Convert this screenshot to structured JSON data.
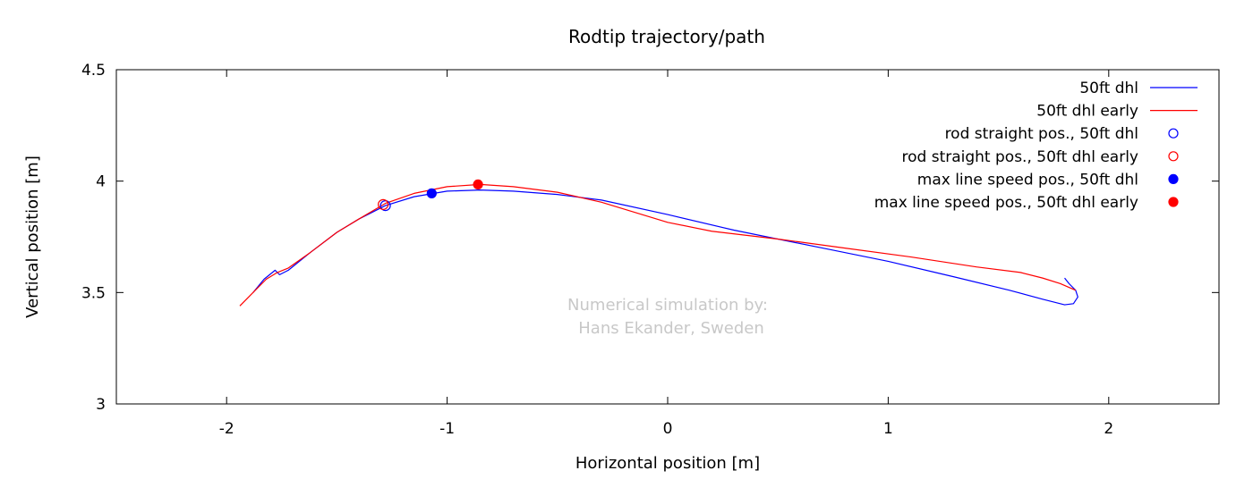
{
  "chart_data": {
    "type": "line",
    "title": "Rodtip trajectory/path",
    "xlabel": "Horizontal position [m]",
    "ylabel": "Vertical position [m]",
    "xlim": [
      -2.5,
      2.5
    ],
    "ylim": [
      3,
      4.5
    ],
    "x_ticks": [
      -2,
      -1,
      0,
      1,
      2
    ],
    "y_ticks": [
      3,
      3.5,
      4,
      4.5
    ],
    "x_tick_labels": [
      "-2",
      "-1",
      "0",
      "1",
      "2"
    ],
    "y_tick_labels": [
      "3",
      "3.5",
      "4",
      "4.5"
    ],
    "grid": false,
    "legend_position": "top-right",
    "annotation": [
      "Numerical simulation by:",
      "Hans Ekander, Sweden"
    ],
    "series": [
      {
        "name": "50ft dhl",
        "kind": "line",
        "color": "#0000ff",
        "x": [
          -1.88,
          -1.83,
          -1.78,
          -1.76,
          -1.72,
          -1.62,
          -1.5,
          -1.4,
          -1.28,
          -1.15,
          -1.0,
          -0.85,
          -0.7,
          -0.5,
          -0.3,
          0.0,
          0.3,
          0.7,
          1.0,
          1.3,
          1.55,
          1.7,
          1.8,
          1.84,
          1.86,
          1.85,
          1.82,
          1.8
        ],
        "y": [
          3.5,
          3.56,
          3.6,
          3.58,
          3.6,
          3.68,
          3.77,
          3.83,
          3.89,
          3.93,
          3.955,
          3.96,
          3.955,
          3.94,
          3.915,
          3.85,
          3.78,
          3.7,
          3.64,
          3.57,
          3.51,
          3.47,
          3.445,
          3.45,
          3.48,
          3.51,
          3.54,
          3.565
        ]
      },
      {
        "name": "50ft dhl early",
        "kind": "line",
        "color": "#ff0000",
        "x": [
          -1.94,
          -1.88,
          -1.82,
          -1.77,
          -1.72,
          -1.62,
          -1.5,
          -1.4,
          -1.28,
          -1.15,
          -1.0,
          -0.85,
          -0.7,
          -0.5,
          -0.3,
          -0.1,
          0.0,
          0.2,
          0.5,
          0.8,
          1.1,
          1.4,
          1.6,
          1.7,
          1.78,
          1.85
        ],
        "y": [
          3.44,
          3.5,
          3.56,
          3.59,
          3.61,
          3.68,
          3.77,
          3.83,
          3.9,
          3.945,
          3.975,
          3.985,
          3.975,
          3.95,
          3.905,
          3.845,
          3.815,
          3.775,
          3.74,
          3.7,
          3.66,
          3.615,
          3.59,
          3.565,
          3.54,
          3.51
        ]
      },
      {
        "name": "rod straight pos., 50ft dhl",
        "kind": "marker",
        "marker": "open-circle",
        "color": "#0000ff",
        "x": [
          -1.28
        ],
        "y": [
          3.89
        ]
      },
      {
        "name": "rod straight pos., 50ft dhl early",
        "kind": "marker",
        "marker": "open-circle",
        "color": "#ff0000",
        "x": [
          -1.29
        ],
        "y": [
          3.895
        ]
      },
      {
        "name": "max line speed pos., 50ft dhl",
        "kind": "marker",
        "marker": "filled-circle",
        "color": "#0000ff",
        "x": [
          -1.07
        ],
        "y": [
          3.945
        ]
      },
      {
        "name": "max line speed pos., 50ft dhl early",
        "kind": "marker",
        "marker": "filled-circle",
        "color": "#ff0000",
        "x": [
          -0.86
        ],
        "y": [
          3.985
        ]
      }
    ]
  }
}
